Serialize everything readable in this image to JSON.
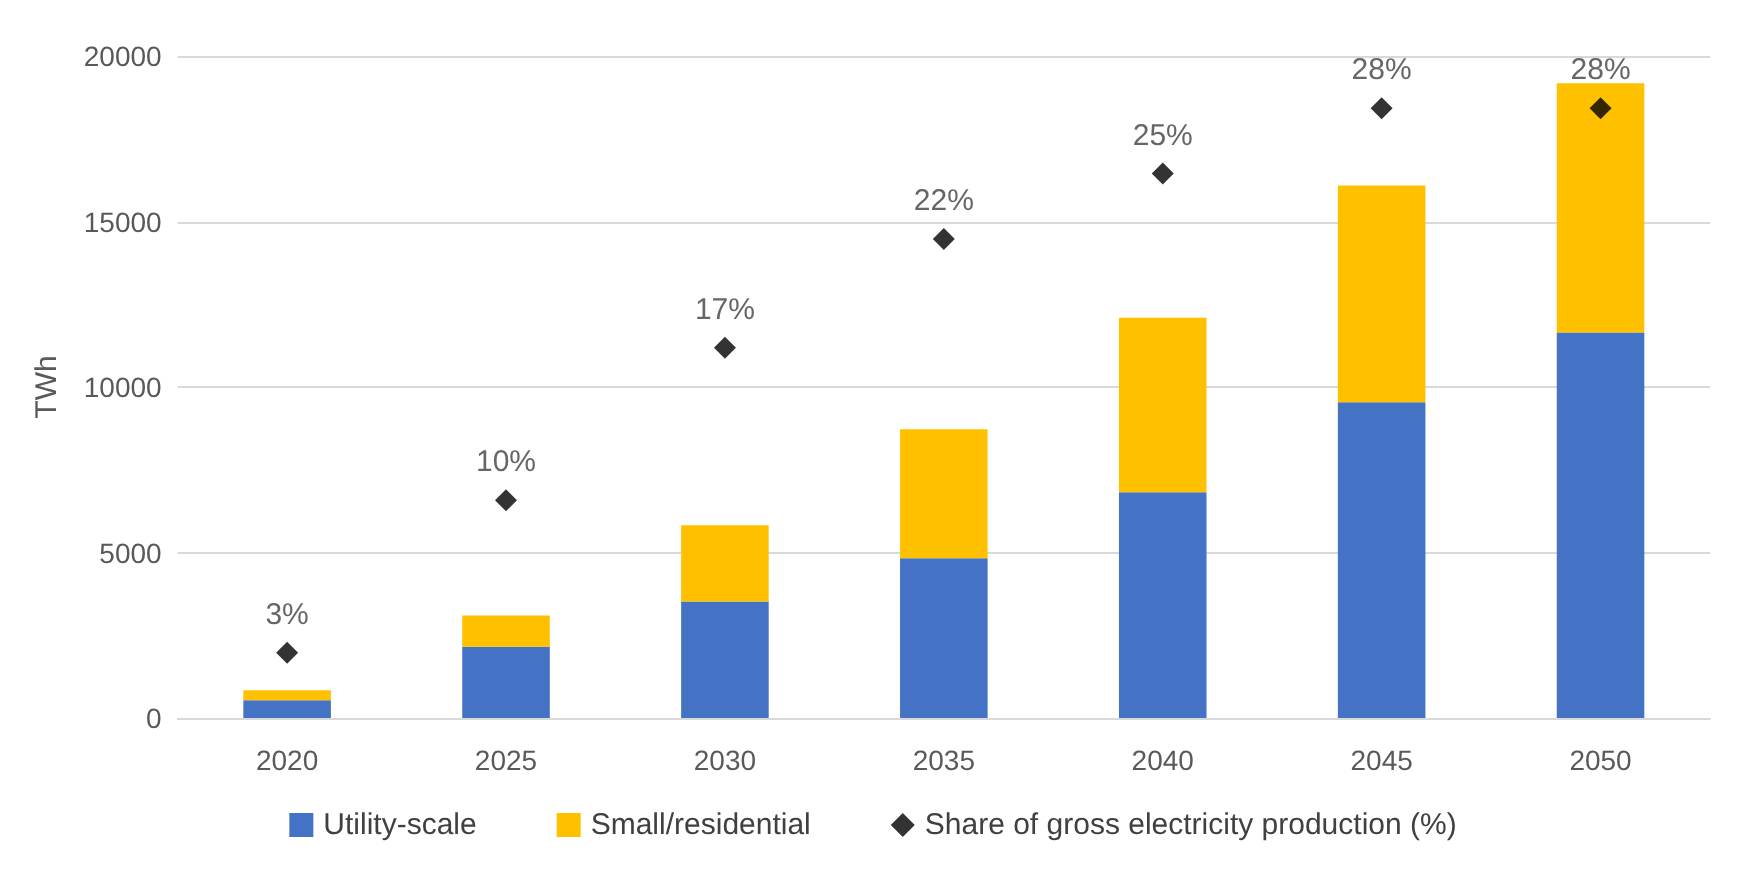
{
  "chart_data": {
    "type": "bar",
    "stacked": true,
    "ylabel": "TWh",
    "categories": [
      "2020",
      "2025",
      "2030",
      "2035",
      "2040",
      "2045",
      "2050"
    ],
    "ylim": [
      0,
      20000
    ],
    "yticks": [
      0,
      5000,
      10000,
      15000,
      20000
    ],
    "grid": "y",
    "legend": "bottom",
    "y2lim": [
      0,
      30.4
    ],
    "series": [
      {
        "name": "Utility-scale",
        "color": "#4472c4",
        "values": [
          540,
          2150,
          3520,
          4830,
          6820,
          9540,
          11650
        ]
      },
      {
        "name": "Small/residential",
        "color": "#ffc000",
        "values": [
          300,
          950,
          2300,
          3890,
          5270,
          6550,
          7530
        ]
      },
      {
        "name": "Share of gross electricity production (%)",
        "type": "scatter",
        "marker": "diamond",
        "color": "#000000",
        "axis": "y2",
        "values": [
          3,
          10,
          17,
          22,
          25,
          28,
          28
        ],
        "value_labels": [
          "3%",
          "10%",
          "17%",
          "22%",
          "25%",
          "28%",
          "28%"
        ]
      }
    ]
  }
}
